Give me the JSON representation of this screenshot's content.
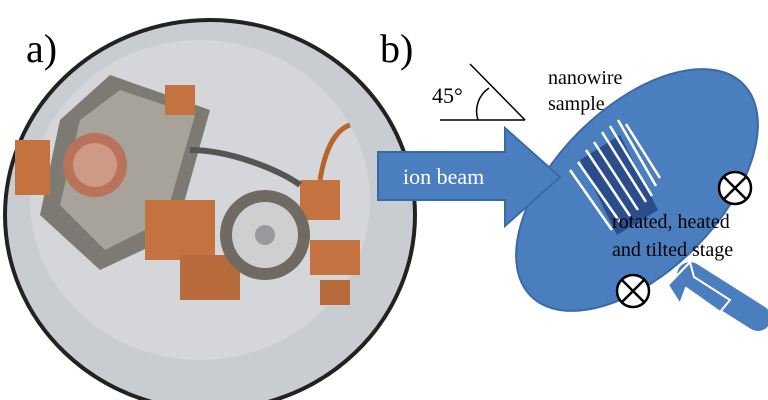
{
  "panels": [
    {
      "label": "a)"
    },
    {
      "label": "b)",
      "angle_label": "45°",
      "sample_label": [
        "nanowire",
        "sample"
      ],
      "beam_label": "ion beam",
      "stage_label": [
        "rotated, heated",
        "and tilted stage"
      ]
    }
  ]
}
